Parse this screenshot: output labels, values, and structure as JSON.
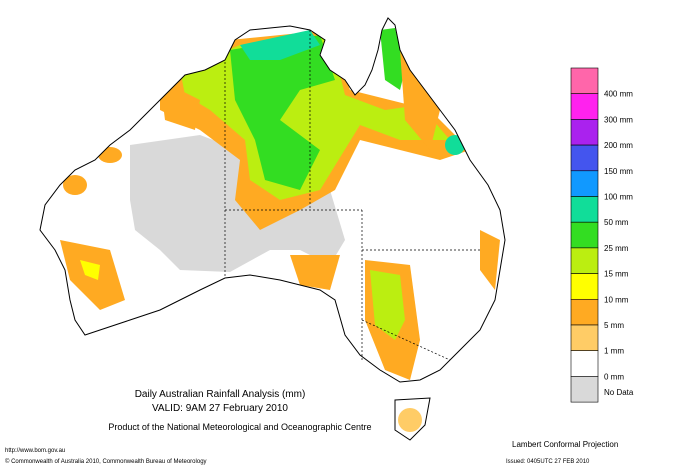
{
  "map": {
    "title": "Daily Australian Rainfall Analysis (mm)",
    "valid": "VALID: 9AM 27 February 2010",
    "product": "Product of the National Meteorological and Oceanographic Centre",
    "url": "http://www.bom.gov.au",
    "copyright": "© Commonwealth of Australia 2010, Commonwealth Bureau of Meteorology",
    "projection": "Lambert Conformal Projection",
    "issued": "Issued: 0405UTC 27 FEB 2010"
  },
  "legend": {
    "colors": [
      "#ff66aa",
      "#ff22ee",
      "#aa22ee",
      "#4455ee",
      "#1199ff",
      "#11dd99",
      "#33dd22",
      "#bbee11",
      "#ffff00",
      "#ffaa22",
      "#ffcc66",
      "#ffffff",
      "#d9d9d9"
    ],
    "labels": [
      "400 mm",
      "300 mm",
      "200 mm",
      "150 mm",
      "100 mm",
      "50 mm",
      "25 mm",
      "15 mm",
      "10 mm",
      "5 mm",
      "1 mm",
      "0 mm",
      "No Data"
    ]
  }
}
